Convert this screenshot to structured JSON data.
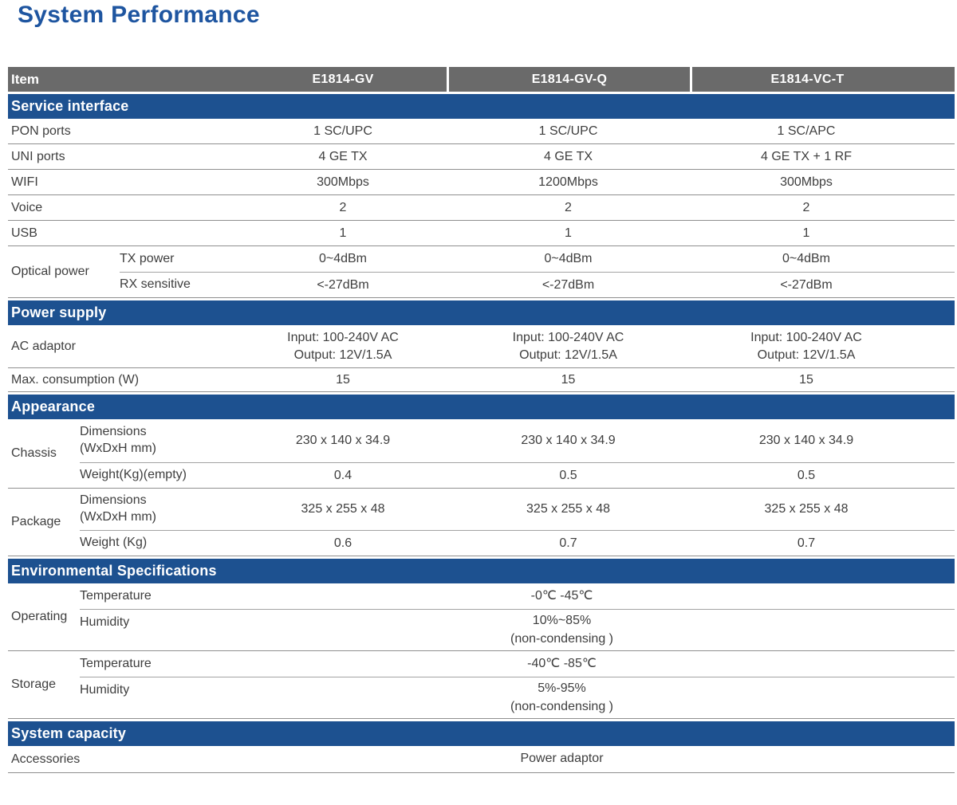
{
  "page_title": "System Performance",
  "colors": {
    "title_blue": "#1E55A0",
    "section_bar_blue": "#1D5190",
    "header_gray": "#6A6A6A",
    "text_gray": "#3E3E3E",
    "line_gray": "#8F8F8F"
  },
  "table": {
    "header": {
      "item": "Item",
      "models": [
        "E1814-GV",
        "E1814-GV-Q",
        "E1814-VC-T"
      ]
    },
    "service": {
      "title": "Service interface",
      "pon": {
        "label": "PON ports",
        "values": [
          "1 SC/UPC",
          "1 SC/UPC",
          "1 SC/APC"
        ]
      },
      "uni": {
        "label": "UNI ports",
        "values": [
          "4 GE TX",
          "4 GE TX",
          "4 GE TX + 1 RF"
        ]
      },
      "wifi": {
        "label": "WIFI",
        "values": [
          "300Mbps",
          "1200Mbps",
          "300Mbps"
        ]
      },
      "voice": {
        "label": "Voice",
        "values": [
          "2",
          "2",
          "2"
        ]
      },
      "usb": {
        "label": "USB",
        "values": [
          "1",
          "1",
          "1"
        ]
      },
      "optical": {
        "label": "Optical power",
        "tx": {
          "label": "TX power",
          "values": [
            "0~4dBm",
            "0~4dBm",
            "0~4dBm"
          ]
        },
        "rx": {
          "label": "RX sensitive",
          "values": [
            "<-27dBm",
            "<-27dBm",
            "<-27dBm"
          ]
        }
      }
    },
    "power": {
      "title": "Power supply",
      "adaptor": {
        "label": "AC adaptor",
        "values": [
          "Input: 100-240V AC\nOutput: 12V/1.5A",
          "Input: 100-240V AC\nOutput: 12V/1.5A",
          "Input: 100-240V AC\nOutput: 12V/1.5A"
        ]
      },
      "consumption": {
        "label": "Max. consumption (W)",
        "values": [
          "15",
          "15",
          "15"
        ]
      }
    },
    "appearance": {
      "title": "Appearance",
      "chassis": {
        "label": "Chassis",
        "dimensions": {
          "label": "Dimensions\n(WxDxH mm)",
          "values": [
            "230 x 140 x 34.9",
            "230 x 140 x 34.9",
            "230 x 140 x 34.9"
          ]
        },
        "weight": {
          "label": "Weight(Kg)(empty)",
          "values": [
            "0.4",
            "0.5",
            "0.5"
          ]
        }
      },
      "package": {
        "label": "Package",
        "dimensions": {
          "label": "Dimensions\n(WxDxH mm)",
          "values": [
            "325 x 255 x 48",
            "325 x 255 x 48",
            "325 x 255 x 48"
          ]
        },
        "weight": {
          "label": "Weight (Kg)",
          "values": [
            "0.6",
            "0.7",
            "0.7"
          ]
        }
      }
    },
    "environment": {
      "title": "Environmental Specifications",
      "operating": {
        "label": "Operating",
        "temperature": {
          "label": "Temperature",
          "value": "-0℃ -45℃"
        },
        "humidity": {
          "label": "Humidity",
          "value": "10%~85%\n(non-condensing )"
        }
      },
      "storage": {
        "label": "Storage",
        "temperature": {
          "label": "Temperature",
          "value": "-40℃ -85℃"
        },
        "humidity": {
          "label": "Humidity",
          "value": "5%-95%\n(non-condensing )"
        }
      }
    },
    "capacity": {
      "title": "System capacity",
      "accessories": {
        "label": "Accessories",
        "value": "Power adaptor"
      }
    }
  }
}
